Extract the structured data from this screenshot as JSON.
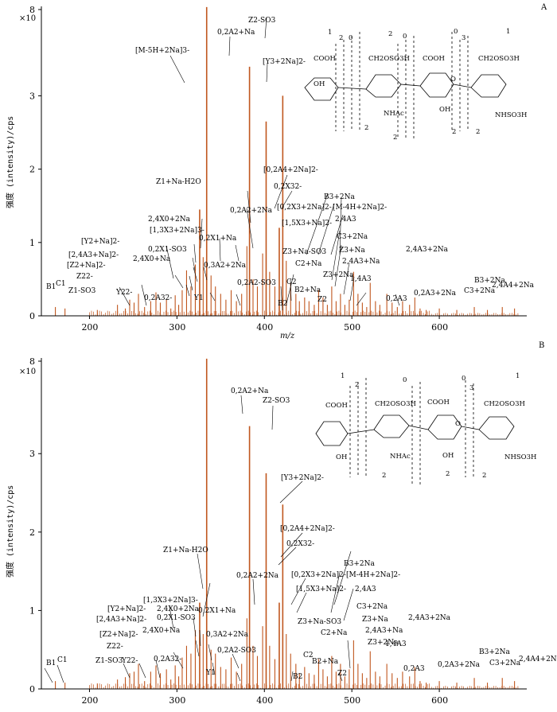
{
  "chart_data": [
    {
      "type": "bar",
      "panel": "A",
      "title": "",
      "xlabel": "m/z",
      "ylabel": "强度 (intensity)/cps",
      "yscale_label": "×10",
      "xlim": [
        145,
        700
      ],
      "ylim": [
        0,
        8.1
      ],
      "xticks": [
        200,
        300,
        400,
        500,
        600
      ],
      "yticks": [
        0,
        1,
        2,
        3,
        8
      ],
      "color": "#c0561e",
      "peaks": [
        [
          161,
          0.12
        ],
        [
          172,
          0.1
        ],
        [
          209,
          0.08
        ],
        [
          232,
          0.15
        ],
        [
          241,
          0.1
        ],
        [
          246,
          0.22
        ],
        [
          251,
          0.18
        ],
        [
          256,
          0.3
        ],
        [
          263,
          0.12
        ],
        [
          270,
          0.2
        ],
        [
          276,
          0.32
        ],
        [
          281,
          0.18
        ],
        [
          288,
          0.22
        ],
        [
          293,
          0.1
        ],
        [
          298,
          0.28
        ],
        [
          302,
          0.15
        ],
        [
          306,
          0.35
        ],
        [
          311,
          0.62
        ],
        [
          316,
          0.4
        ],
        [
          321,
          0.7
        ],
        [
          326,
          1.45
        ],
        [
          330,
          0.8
        ],
        [
          334,
          8.05
        ],
        [
          339,
          0.55
        ],
        [
          344,
          0.4
        ],
        [
          350,
          0.3
        ],
        [
          356,
          0.22
        ],
        [
          362,
          0.35
        ],
        [
          368,
          0.2
        ],
        [
          374,
          0.3
        ],
        [
          380,
          0.95
        ],
        [
          383,
          3.55
        ],
        [
          387,
          0.5
        ],
        [
          392,
          0.4
        ],
        [
          398,
          0.85
        ],
        [
          402,
          2.65
        ],
        [
          406,
          0.6
        ],
        [
          412,
          0.4
        ],
        [
          417,
          1.2
        ],
        [
          421,
          3.0
        ],
        [
          425,
          0.75
        ],
        [
          430,
          0.45
        ],
        [
          436,
          0.3
        ],
        [
          440,
          0.2
        ],
        [
          446,
          0.25
        ],
        [
          451,
          0.2
        ],
        [
          457,
          0.15
        ],
        [
          462,
          0.35
        ],
        [
          467,
          0.25
        ],
        [
          472,
          0.15
        ],
        [
          477,
          0.4
        ],
        [
          482,
          0.2
        ],
        [
          487,
          0.3
        ],
        [
          492,
          0.15
        ],
        [
          497,
          0.22
        ],
        [
          502,
          0.6
        ],
        [
          507,
          0.3
        ],
        [
          512,
          0.18
        ],
        [
          517,
          0.12
        ],
        [
          521,
          0.45
        ],
        [
          527,
          0.2
        ],
        [
          532,
          0.15
        ],
        [
          540,
          0.3
        ],
        [
          546,
          0.18
        ],
        [
          552,
          0.12
        ],
        [
          558,
          0.2
        ],
        [
          566,
          0.15
        ],
        [
          572,
          0.25
        ],
        [
          578,
          0.1
        ],
        [
          585,
          0.08
        ],
        [
          600,
          0.1
        ],
        [
          620,
          0.08
        ],
        [
          640,
          0.12
        ],
        [
          655,
          0.08
        ],
        [
          672,
          0.12
        ],
        [
          686,
          0.1
        ]
      ]
    },
    {
      "type": "bar",
      "panel": "B",
      "title": "",
      "xlabel": "",
      "ylabel": "强度 (intensity)/cps",
      "yscale_label": "×10",
      "xlim": [
        145,
        700
      ],
      "ylim": [
        0,
        8.1
      ],
      "xticks": [
        200,
        300,
        400,
        500,
        600
      ],
      "yticks": [
        0,
        1,
        2,
        3,
        8
      ],
      "color": "#c0561e",
      "peaks": [
        [
          161,
          0.1
        ],
        [
          172,
          0.08
        ],
        [
          209,
          0.07
        ],
        [
          232,
          0.12
        ],
        [
          241,
          0.15
        ],
        [
          246,
          0.2
        ],
        [
          251,
          0.22
        ],
        [
          256,
          0.32
        ],
        [
          263,
          0.1
        ],
        [
          270,
          0.22
        ],
        [
          276,
          0.3
        ],
        [
          281,
          0.2
        ],
        [
          288,
          0.25
        ],
        [
          293,
          0.12
        ],
        [
          298,
          0.3
        ],
        [
          302,
          0.16
        ],
        [
          306,
          0.4
        ],
        [
          311,
          0.55
        ],
        [
          316,
          0.45
        ],
        [
          321,
          0.75
        ],
        [
          326,
          1.1
        ],
        [
          330,
          0.7
        ],
        [
          334,
          8.05
        ],
        [
          339,
          0.5
        ],
        [
          344,
          0.45
        ],
        [
          350,
          0.28
        ],
        [
          356,
          0.25
        ],
        [
          362,
          0.4
        ],
        [
          368,
          0.22
        ],
        [
          374,
          0.32
        ],
        [
          380,
          0.9
        ],
        [
          383,
          3.3
        ],
        [
          387,
          0.55
        ],
        [
          392,
          0.42
        ],
        [
          398,
          0.8
        ],
        [
          402,
          2.75
        ],
        [
          406,
          0.55
        ],
        [
          412,
          0.38
        ],
        [
          417,
          1.1
        ],
        [
          421,
          2.35
        ],
        [
          425,
          0.7
        ],
        [
          430,
          0.45
        ],
        [
          436,
          0.32
        ],
        [
          440,
          0.2
        ],
        [
          446,
          0.28
        ],
        [
          451,
          0.2
        ],
        [
          457,
          0.18
        ],
        [
          462,
          0.38
        ],
        [
          467,
          0.25
        ],
        [
          472,
          0.16
        ],
        [
          477,
          0.42
        ],
        [
          482,
          0.22
        ],
        [
          487,
          0.32
        ],
        [
          492,
          0.16
        ],
        [
          497,
          0.25
        ],
        [
          502,
          0.62
        ],
        [
          507,
          0.32
        ],
        [
          512,
          0.2
        ],
        [
          517,
          0.14
        ],
        [
          521,
          0.48
        ],
        [
          527,
          0.22
        ],
        [
          532,
          0.16
        ],
        [
          540,
          0.32
        ],
        [
          546,
          0.2
        ],
        [
          552,
          0.14
        ],
        [
          558,
          0.22
        ],
        [
          566,
          0.16
        ],
        [
          572,
          0.28
        ],
        [
          578,
          0.1
        ],
        [
          585,
          0.08
        ],
        [
          600,
          0.1
        ],
        [
          620,
          0.08
        ],
        [
          640,
          0.14
        ],
        [
          655,
          0.08
        ],
        [
          672,
          0.14
        ],
        [
          686,
          0.1
        ]
      ]
    }
  ],
  "panel_a": {
    "letter": "A",
    "labels": [
      "[M-5H+2Na]3-",
      "0,2A2+Na",
      "Z2-SO3",
      "[Y3+2Na]2-",
      "[0,2A4+2Na]2-",
      "0,2X32-",
      "Z1+Na-H2O",
      "0,2A2+2Na",
      "[0,2X3+2Na]2-",
      "[M-4H+2Na]2-",
      "B3+2Na",
      "2,4A3",
      "2,4X0+2Na",
      "[1,3X3+2Na]3-",
      "0,2X1+Na",
      "[1,5X3+Na]2-",
      "[Y2+Na]2-",
      "0,2X1-SO3",
      "C3+2Na",
      "[2,4A3+Na]2-",
      "2,4X0+Na",
      "Z3+Na-SO3",
      "Z3+Na",
      "[Z2+Na]2-",
      "C2+Na",
      "0,3A2+2Na",
      "2,4A3+Na",
      "2,4A3+2Na",
      "Z22-",
      "Z1-SO3",
      "Y22-",
      "0,2A2-SO3",
      "1,4A3",
      "Z3+2Na",
      "B1",
      "C1",
      "0,2A32-",
      "Y1",
      "C2",
      "B2+Na",
      "0,2A3",
      "0,2A3+2Na",
      "B3+2Na",
      "C3+2Na",
      "2,4A4+2Na",
      "B2",
      "Z2"
    ]
  },
  "panel_b": {
    "letter": "B",
    "labels": [
      "0,2A2+Na",
      "Z2-SO3",
      "[Y3+2Na]2-",
      "Z1+Na-H2O",
      "[0,2A4+2Na]2-",
      "0,2X32-",
      "0,2A2+2Na",
      "[0,2X3+2Na]2-",
      "B3+2Na",
      "[M-4H+2Na]2-",
      "2,4X0+2Na",
      "[Y2+Na]2-",
      "[1,3X3+2Na]3-",
      "0,2X1+Na",
      "[1,5X3+Na]2-",
      "2,4A3",
      "[2,4A3+Na]2-",
      "0,2X1-SO3",
      "2,4X0+Na",
      "C3+2Na",
      "Z3+Na",
      "Z3+Na-SO3",
      "C2+Na",
      "[Z2+Na]2-",
      "0,3A2+2Na",
      "2,4A3+Na",
      "2,4A3+2Na",
      "Z22-",
      "Z1-SO3",
      "Y22-",
      "0,2A32-",
      "0,2A2-SO3",
      "Z3+2Na",
      "1,4A3",
      "B1",
      "C1",
      "Y1",
      "C2",
      "B2+Na",
      "B2",
      "Z2",
      "0,2A3",
      "0,2A3+2Na",
      "B3+2Na",
      "C3+2Na",
      "2,4A4+2Na"
    ]
  },
  "structure": {
    "groups": [
      "COOH",
      "CH2OSO3H",
      "COOH",
      "CH2OSO3H",
      "OH",
      "NHAc",
      "OH",
      "NHSO3H",
      "O"
    ],
    "digits": [
      "0",
      "1",
      "2",
      "3"
    ]
  }
}
